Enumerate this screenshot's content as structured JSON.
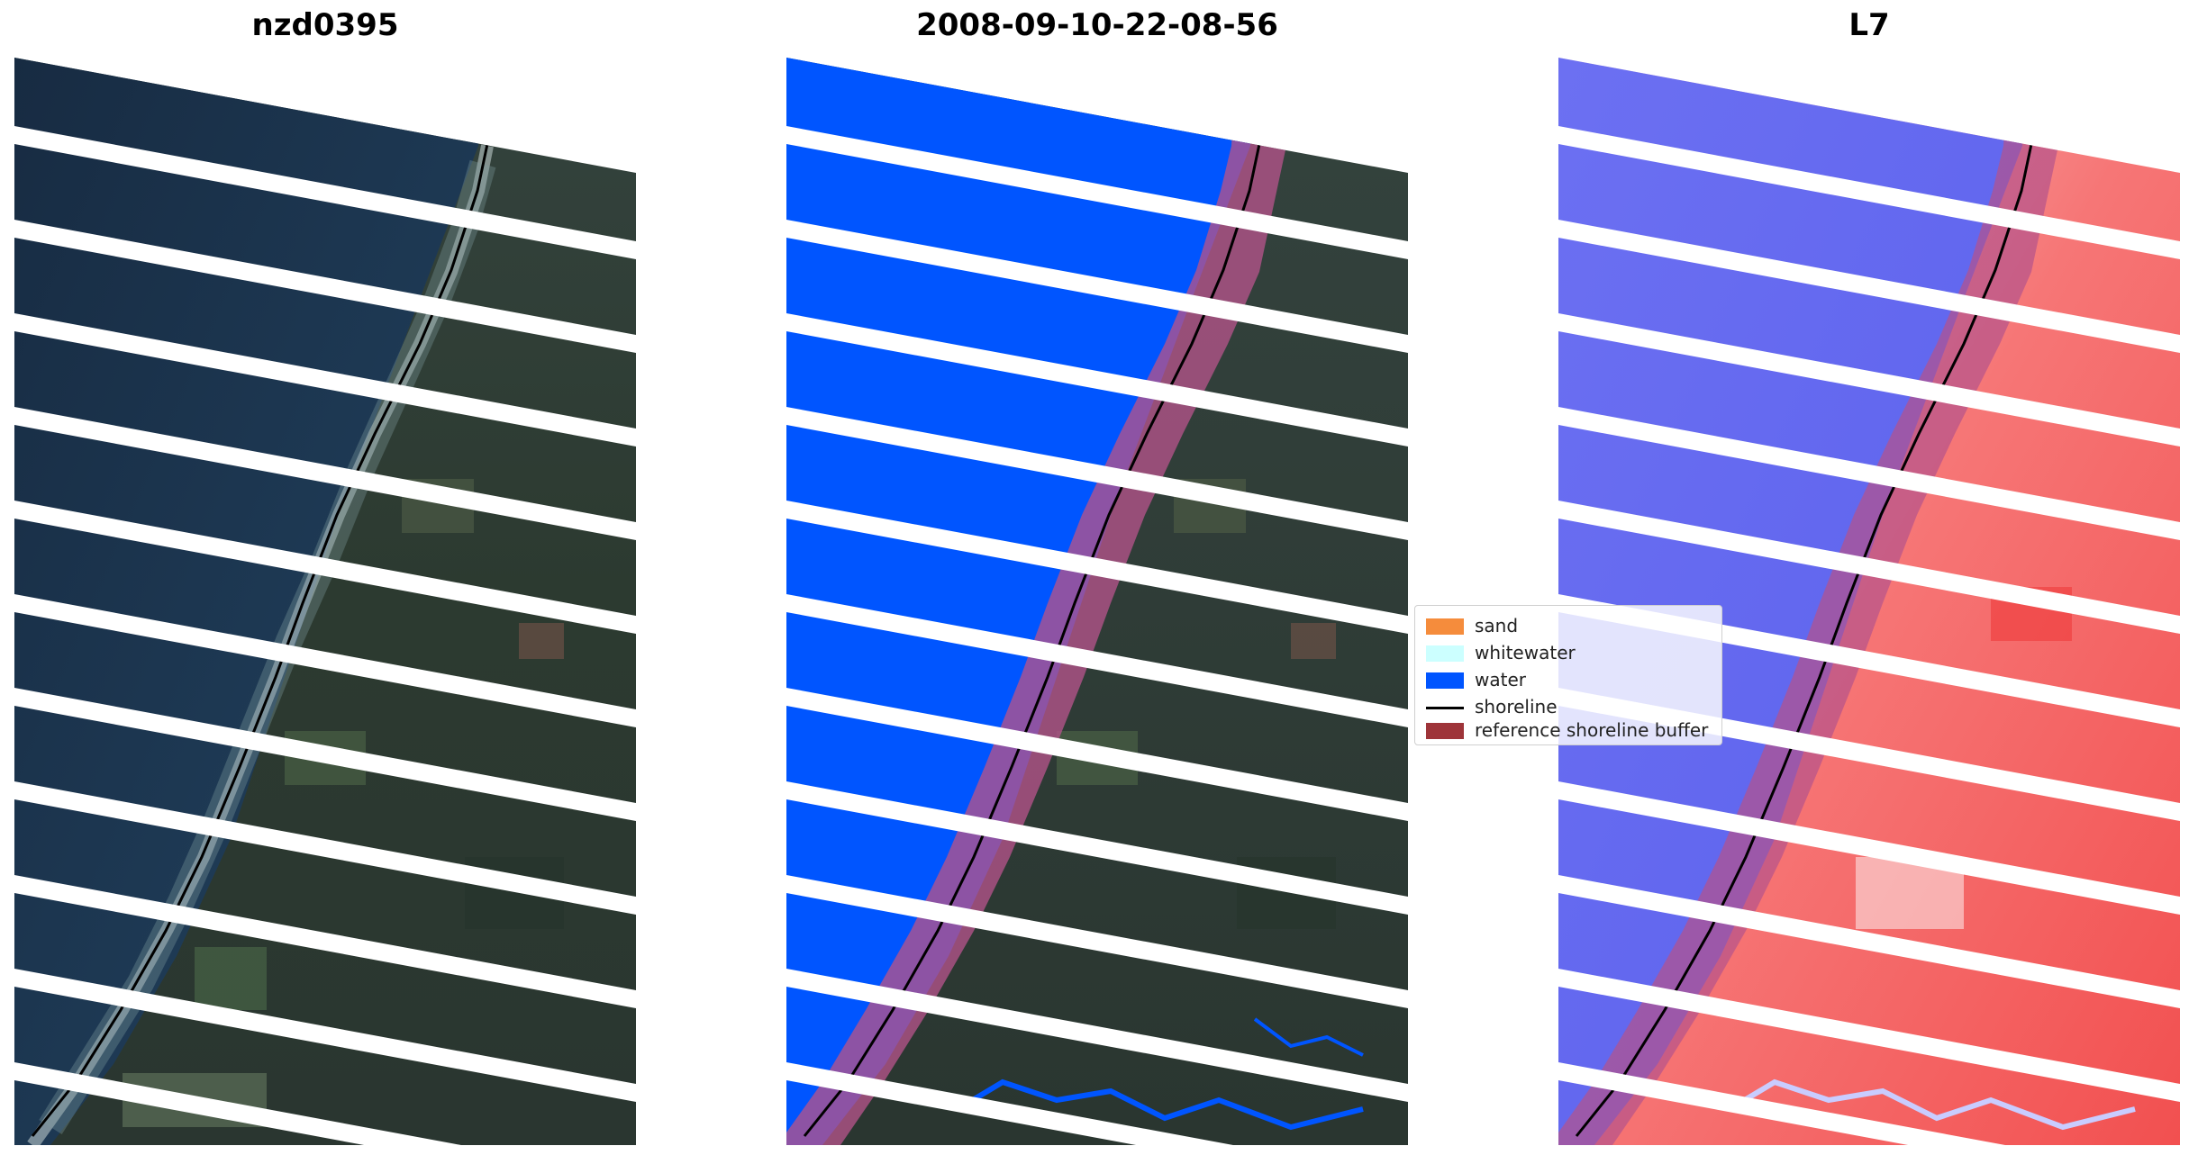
{
  "panels": [
    {
      "title": "nzd0395"
    },
    {
      "title": "2008-09-10-22-08-56"
    },
    {
      "title": "L7"
    }
  ],
  "legend": {
    "placement": "center-right",
    "items": [
      {
        "label": "sand",
        "color": "#f58c3c",
        "kind": "patch"
      },
      {
        "label": "whitewater",
        "color": "#ccffff",
        "kind": "patch"
      },
      {
        "label": "water",
        "color": "#0055ff",
        "kind": "patch"
      },
      {
        "label": "shoreline",
        "color": "#000000",
        "kind": "line"
      },
      {
        "label": "reference shoreline buffer",
        "color": "#9e3439",
        "kind": "patch"
      }
    ]
  },
  "colors": {
    "ocean": "#1c3550",
    "land": "#2f3b35",
    "water_class": "#0055ff",
    "buffer": "#b5538b",
    "index_water": "#5a5ff0",
    "index_land": "#f45a5a",
    "shoreline": "#000000"
  }
}
